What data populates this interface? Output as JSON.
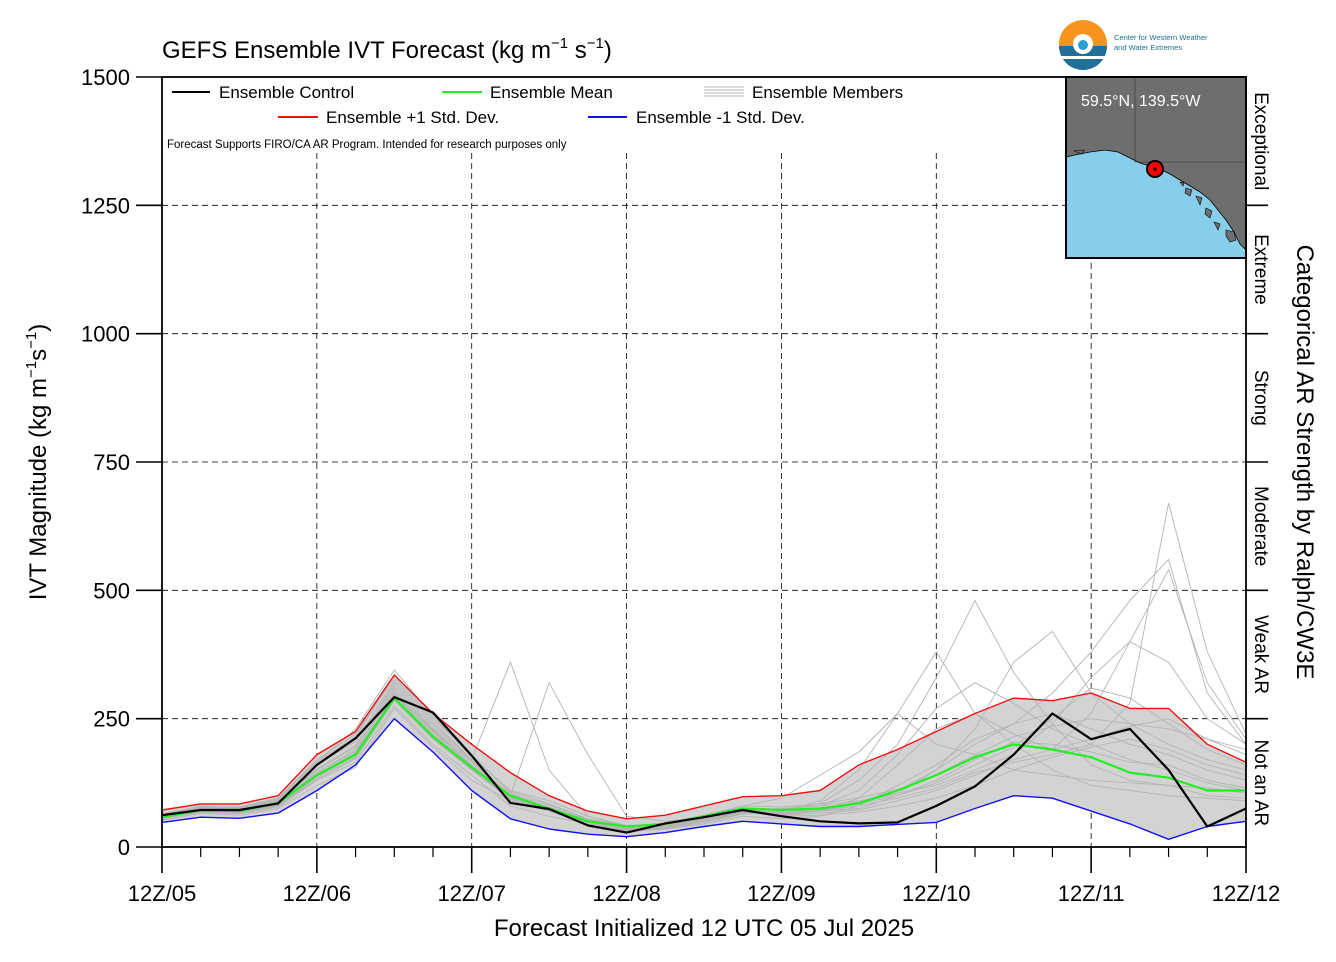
{
  "chart_data": {
    "type": "line",
    "title": "GEFS Ensemble IVT Forecast (kg m",
    "title_sup1": "−1",
    "title_mid": " s",
    "title_sup2": "−1",
    "title_end": ")",
    "ylabel_main": "IVT Magnitude (kg m",
    "ylabel_sup1": "−1",
    "ylabel_mid": "s",
    "ylabel_sup2": "−1",
    "ylabel_end": ")",
    "xlabel": "Forecast Initialized 12 UTC 05 Jul 2025",
    "right_label": "Categorical AR Strength by Ralph/CW3E",
    "note": "Forecast Supports FIRO/CA AR Program. Intended for research purposes only",
    "xlim": [
      0,
      168
    ],
    "ylim": [
      0,
      1500
    ],
    "grid": true,
    "legend_position": "top-left",
    "x_ticks": [
      {
        "x": 0,
        "label": "12Z/05"
      },
      {
        "x": 24,
        "label": "12Z/06"
      },
      {
        "x": 48,
        "label": "12Z/07"
      },
      {
        "x": 72,
        "label": "12Z/08"
      },
      {
        "x": 96,
        "label": "12Z/09"
      },
      {
        "x": 120,
        "label": "12Z/10"
      },
      {
        "x": 144,
        "label": "12Z/11"
      },
      {
        "x": 168,
        "label": "12Z/12"
      }
    ],
    "y_ticks": [
      0,
      250,
      500,
      750,
      1000,
      1250,
      1500
    ],
    "categories": [
      {
        "label": "Not an AR",
        "from": 0,
        "to": 250
      },
      {
        "label": "Weak AR",
        "from": 250,
        "to": 500
      },
      {
        "label": "Moderate",
        "from": 500,
        "to": 750
      },
      {
        "label": "Strong",
        "from": 750,
        "to": 1000
      },
      {
        "label": "Extreme",
        "from": 1000,
        "to": 1250
      },
      {
        "label": "Exceptional",
        "from": 1250,
        "to": 1500
      }
    ],
    "legend": {
      "control": "Ensemble Control",
      "mean": "Ensemble Mean",
      "members": "Ensemble Members",
      "plus": "Ensemble +1 Std. Dev.",
      "minus": "Ensemble -1 Std. Dev."
    },
    "colors": {
      "control": "#000000",
      "mean": "#22ee22",
      "plus": "#ee1111",
      "minus": "#1111ee",
      "members": "#b4b4b4",
      "spread": "#d3d3d3",
      "map_land": "#6e6e6e",
      "map_ocean": "#87ceeb",
      "marker": "#ff0000"
    },
    "x": [
      0,
      6,
      12,
      18,
      24,
      30,
      36,
      42,
      48,
      54,
      60,
      66,
      72,
      78,
      84,
      90,
      96,
      102,
      108,
      114,
      120,
      126,
      132,
      138,
      144,
      150,
      156,
      162,
      168
    ],
    "series": [
      {
        "name": "Ensemble Control",
        "key": "control",
        "values": [
          62,
          72,
          72,
          85,
          160,
          212,
          292,
          262,
          178,
          86,
          74,
          42,
          28,
          46,
          58,
          72,
          60,
          50,
          46,
          48,
          80,
          118,
          180,
          260,
          210,
          230,
          150,
          40,
          75
        ]
      },
      {
        "name": "Ensemble Mean",
        "key": "mean",
        "values": [
          58,
          72,
          70,
          86,
          140,
          180,
          290,
          215,
          155,
          100,
          75,
          50,
          40,
          45,
          60,
          75,
          72,
          75,
          85,
          110,
          140,
          175,
          200,
          190,
          175,
          145,
          135,
          110,
          110
        ]
      },
      {
        "name": "Ensemble +1 Std. Dev.",
        "key": "plus",
        "values": [
          72,
          84,
          84,
          100,
          180,
          225,
          335,
          260,
          200,
          145,
          100,
          70,
          55,
          62,
          80,
          98,
          100,
          110,
          160,
          190,
          225,
          260,
          290,
          285,
          300,
          270,
          270,
          200,
          165
        ]
      },
      {
        "name": "Ensemble -1 Std. Dev.",
        "key": "minus",
        "values": [
          48,
          58,
          56,
          66,
          110,
          160,
          250,
          185,
          110,
          55,
          35,
          25,
          20,
          28,
          40,
          50,
          45,
          40,
          40,
          44,
          48,
          75,
          100,
          95,
          70,
          45,
          15,
          40,
          50
        ]
      }
    ],
    "members": [
      [
        62,
        80,
        75,
        95,
        165,
        230,
        345,
        255,
        175,
        110,
        90,
        60,
        42,
        45,
        55,
        70,
        65,
        70,
        75,
        100,
        130,
        170,
        205,
        200,
        185,
        165,
        160,
        130,
        115
      ],
      [
        55,
        68,
        65,
        78,
        130,
        165,
        275,
        200,
        140,
        80,
        60,
        45,
        35,
        40,
        50,
        65,
        70,
        85,
        130,
        200,
        330,
        480,
        340,
        240,
        160,
        130,
        120,
        100,
        95
      ],
      [
        60,
        75,
        72,
        90,
        150,
        195,
        320,
        240,
        170,
        360,
        150,
        60,
        40,
        42,
        55,
        70,
        75,
        80,
        90,
        105,
        120,
        150,
        180,
        240,
        330,
        400,
        360,
        250,
        200
      ],
      [
        52,
        66,
        62,
        75,
        120,
        155,
        270,
        195,
        130,
        90,
        70,
        55,
        40,
        45,
        60,
        80,
        95,
        140,
        185,
        260,
        200,
        180,
        150,
        140,
        130,
        125,
        120,
        115,
        105
      ],
      [
        65,
        78,
        78,
        95,
        170,
        220,
        330,
        250,
        180,
        105,
        75,
        50,
        30,
        35,
        45,
        60,
        55,
        60,
        80,
        120,
        160,
        210,
        240,
        300,
        380,
        480,
        560,
        300,
        200
      ],
      [
        58,
        70,
        68,
        82,
        140,
        180,
        300,
        225,
        160,
        95,
        72,
        48,
        32,
        38,
        52,
        68,
        62,
        70,
        95,
        160,
        230,
        260,
        220,
        190,
        260,
        400,
        540,
        320,
        210
      ],
      [
        60,
        74,
        70,
        88,
        145,
        190,
        310,
        230,
        165,
        100,
        320,
        180,
        60,
        50,
        58,
        72,
        68,
        74,
        88,
        110,
        150,
        200,
        240,
        260,
        230,
        200,
        180,
        150,
        130
      ],
      [
        55,
        69,
        66,
        80,
        132,
        172,
        285,
        210,
        150,
        92,
        70,
        45,
        30,
        36,
        48,
        64,
        70,
        90,
        150,
        260,
        380,
        260,
        200,
        150,
        120,
        110,
        100,
        95,
        90
      ],
      [
        63,
        77,
        74,
        92,
        160,
        205,
        325,
        245,
        170,
        100,
        78,
        52,
        36,
        40,
        54,
        70,
        66,
        72,
        86,
        104,
        150,
        230,
        360,
        420,
        300,
        240,
        200,
        170,
        150
      ],
      [
        57,
        71,
        69,
        84,
        138,
        178,
        295,
        220,
        155,
        94,
        74,
        48,
        34,
        40,
        54,
        70,
        62,
        66,
        72,
        90,
        110,
        140,
        170,
        190,
        210,
        235,
        250,
        210,
        180
      ],
      [
        61,
        76,
        73,
        90,
        152,
        198,
        315,
        235,
        168,
        102,
        82,
        54,
        38,
        44,
        60,
        76,
        74,
        80,
        110,
        180,
        270,
        320,
        280,
        230,
        200,
        170,
        150,
        125,
        110
      ],
      [
        59,
        73,
        71,
        86,
        146,
        186,
        305,
        228,
        160,
        98,
        76,
        50,
        36,
        42,
        56,
        72,
        66,
        70,
        80,
        95,
        115,
        145,
        165,
        180,
        200,
        280,
        670,
        380,
        220
      ],
      [
        56,
        70,
        67,
        81,
        136,
        174,
        290,
        212,
        152,
        94,
        72,
        48,
        32,
        38,
        50,
        66,
        64,
        70,
        84,
        100,
        125,
        160,
        195,
        250,
        310,
        290,
        240,
        190,
        160
      ],
      [
        64,
        79,
        76,
        94,
        166,
        214,
        335,
        255,
        178,
        108,
        84,
        55,
        40,
        46,
        62,
        80,
        78,
        84,
        96,
        112,
        140,
        180,
        215,
        235,
        250,
        240,
        230,
        210,
        190
      ],
      [
        58,
        72,
        69,
        84,
        142,
        183,
        298,
        224,
        158,
        97,
        75,
        49,
        34,
        40,
        52,
        68,
        60,
        62,
        68,
        80,
        95,
        120,
        150,
        175,
        195,
        210,
        190,
        160,
        140
      ]
    ],
    "inset_map": {
      "label": "59.5°N, 139.5°W"
    },
    "logo": {
      "line1": "Center for Western Weather",
      "line2": "and Water Extremes"
    }
  }
}
